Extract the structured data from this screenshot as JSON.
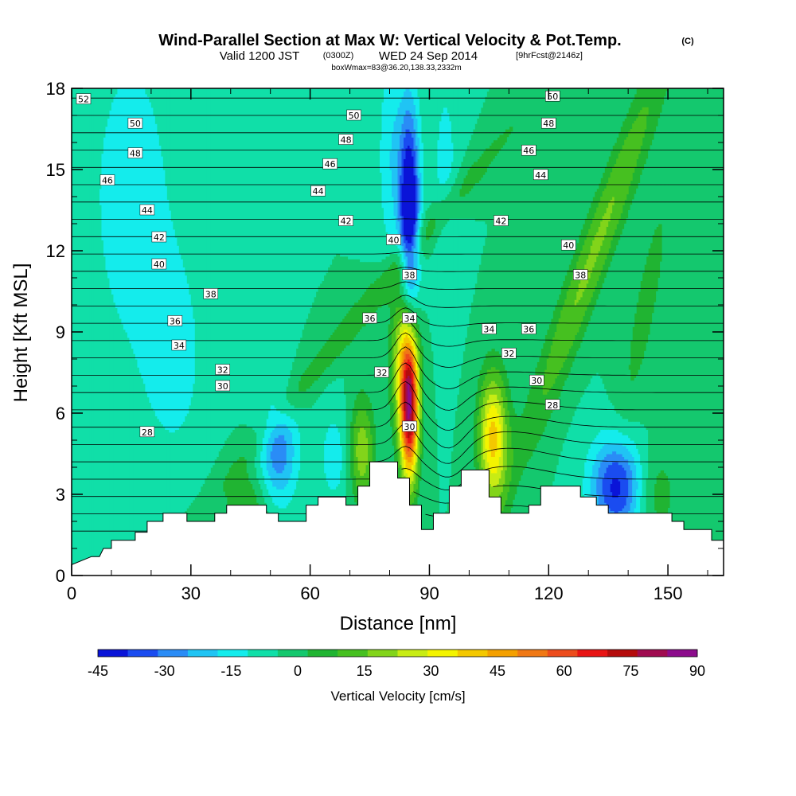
{
  "chart_data": {
    "type": "heatmap",
    "title": "Wind-Parallel Section at Max W: Vertical Velocity & Pot.Temp.",
    "title_mark": "(C)",
    "subtitle": {
      "valid": "Valid 1200 JST",
      "utc": "(0300Z)",
      "date": "WED 24 Sep 2014",
      "forecast": "[9hrFcst@2146z]"
    },
    "box_info": "boxWmax=83@36.20,138.33,2332m",
    "xlabel": "Distance [nm]",
    "ylabel": "Height [Kft MSL]",
    "xlim": [
      0,
      164
    ],
    "ylim": [
      0,
      18
    ],
    "x_ticks": [
      0,
      30,
      60,
      90,
      120,
      150
    ],
    "y_ticks": [
      0,
      3,
      6,
      9,
      12,
      15,
      18
    ],
    "colorbar": {
      "label": "Vertical Velocity [cm/s]",
      "min": -45,
      "max": 90,
      "step": 7.5,
      "ticks": [
        -45,
        -30,
        -15,
        0,
        15,
        30,
        45,
        60,
        75,
        90
      ],
      "colors": [
        "#0a14d8",
        "#1a4cf0",
        "#2a8cf6",
        "#20c4f4",
        "#14ecec",
        "#10dfa8",
        "#14c86e",
        "#20b432",
        "#46c020",
        "#82d41a",
        "#c8ec14",
        "#f4f400",
        "#f4c800",
        "#f4a000",
        "#f07814",
        "#ec4c1c",
        "#e81414",
        "#b40c0c",
        "#a00c50",
        "#8c0c8c"
      ]
    },
    "terrain": [
      [
        0,
        0.4
      ],
      [
        5,
        0.7
      ],
      [
        7,
        0.7
      ],
      [
        8,
        1.0
      ],
      [
        10,
        1.0
      ],
      [
        10,
        1.3
      ],
      [
        16,
        1.3
      ],
      [
        16,
        1.6
      ],
      [
        19,
        1.6
      ],
      [
        19,
        2.0
      ],
      [
        23,
        2.0
      ],
      [
        23,
        2.3
      ],
      [
        29,
        2.3
      ],
      [
        29,
        2.0
      ],
      [
        36,
        2.0
      ],
      [
        36,
        2.3
      ],
      [
        39,
        2.3
      ],
      [
        39,
        2.6
      ],
      [
        49,
        2.6
      ],
      [
        49,
        2.3
      ],
      [
        52,
        2.3
      ],
      [
        52,
        2.0
      ],
      [
        59,
        2.0
      ],
      [
        59,
        2.6
      ],
      [
        62,
        2.6
      ],
      [
        62,
        2.9
      ],
      [
        69,
        2.9
      ],
      [
        69,
        2.6
      ],
      [
        72,
        2.6
      ],
      [
        72,
        3.3
      ],
      [
        75,
        3.3
      ],
      [
        75,
        4.2
      ],
      [
        82,
        4.2
      ],
      [
        82,
        3.6
      ],
      [
        85,
        3.6
      ],
      [
        85,
        2.6
      ],
      [
        88,
        2.6
      ],
      [
        88,
        1.7
      ],
      [
        91,
        1.7
      ],
      [
        91,
        2.3
      ],
      [
        95,
        2.3
      ],
      [
        95,
        3.3
      ],
      [
        98,
        3.3
      ],
      [
        98,
        3.9
      ],
      [
        105,
        3.9
      ],
      [
        105,
        2.9
      ],
      [
        108,
        2.9
      ],
      [
        108,
        2.3
      ],
      [
        115,
        2.3
      ],
      [
        115,
        2.6
      ],
      [
        118,
        2.6
      ],
      [
        118,
        3.3
      ],
      [
        125,
        3.3
      ],
      [
        125,
        3.3
      ],
      [
        128,
        3.3
      ],
      [
        128,
        2.9
      ],
      [
        132,
        2.9
      ],
      [
        132,
        2.6
      ],
      [
        135,
        2.6
      ],
      [
        135,
        2.3
      ],
      [
        151,
        2.3
      ],
      [
        151,
        2.0
      ],
      [
        154,
        2.0
      ],
      [
        154,
        1.7
      ],
      [
        161,
        1.7
      ],
      [
        161,
        1.3
      ],
      [
        164,
        1.3
      ]
    ],
    "isentrope_labels": [
      {
        "text": "52",
        "x": 3,
        "y": 17.6
      },
      {
        "text": "50",
        "x": 16,
        "y": 16.7
      },
      {
        "text": "48",
        "x": 16,
        "y": 15.6
      },
      {
        "text": "46",
        "x": 9,
        "y": 14.6
      },
      {
        "text": "44",
        "x": 19,
        "y": 13.5
      },
      {
        "text": "42",
        "x": 22,
        "y": 12.5
      },
      {
        "text": "40",
        "x": 22,
        "y": 11.5
      },
      {
        "text": "38",
        "x": 35,
        "y": 10.4
      },
      {
        "text": "36",
        "x": 26,
        "y": 9.4
      },
      {
        "text": "34",
        "x": 27,
        "y": 8.5
      },
      {
        "text": "32",
        "x": 38,
        "y": 7.6
      },
      {
        "text": "30",
        "x": 38,
        "y": 7.0
      },
      {
        "text": "28",
        "x": 19,
        "y": 5.3
      },
      {
        "text": "50",
        "x": 71,
        "y": 17.0
      },
      {
        "text": "48",
        "x": 69,
        "y": 16.1
      },
      {
        "text": "46",
        "x": 65,
        "y": 15.2
      },
      {
        "text": "44",
        "x": 62,
        "y": 14.2
      },
      {
        "text": "42",
        "x": 69,
        "y": 13.1
      },
      {
        "text": "40",
        "x": 81,
        "y": 12.4
      },
      {
        "text": "38",
        "x": 85,
        "y": 11.1
      },
      {
        "text": "36",
        "x": 75,
        "y": 9.5
      },
      {
        "text": "34",
        "x": 85,
        "y": 9.5
      },
      {
        "text": "32",
        "x": 78,
        "y": 7.5
      },
      {
        "text": "30",
        "x": 85,
        "y": 5.5
      },
      {
        "text": "50",
        "x": 121,
        "y": 17.7
      },
      {
        "text": "48",
        "x": 120,
        "y": 16.7
      },
      {
        "text": "46",
        "x": 115,
        "y": 15.7
      },
      {
        "text": "44",
        "x": 118,
        "y": 14.8
      },
      {
        "text": "42",
        "x": 108,
        "y": 13.1
      },
      {
        "text": "40",
        "x": 125,
        "y": 12.2
      },
      {
        "text": "38",
        "x": 128,
        "y": 11.1
      },
      {
        "text": "34",
        "x": 105,
        "y": 9.1
      },
      {
        "text": "36",
        "x": 115,
        "y": 9.1
      },
      {
        "text": "32",
        "x": 110,
        "y": 8.2
      },
      {
        "text": "30",
        "x": 117,
        "y": 7.2
      },
      {
        "text": "28",
        "x": 121,
        "y": 6.3
      }
    ]
  }
}
